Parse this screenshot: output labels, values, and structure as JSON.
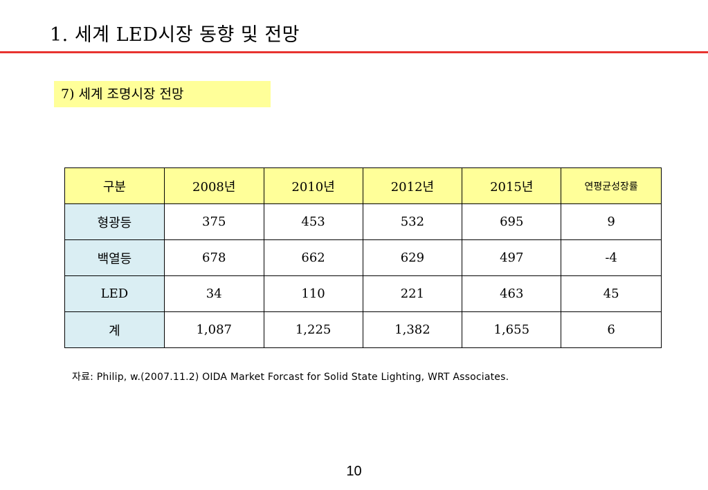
{
  "slide": {
    "title": "1. 세계 LED시장 동향 및 전망",
    "section_label": "7)  세계 조명시장 전망",
    "source_note": "자료: Philip, w.(2007.11.2) OIDA Market Forcast for Solid State Lighting, WRT Associates.",
    "page_number": "10",
    "colors": {
      "title_rule": "#e8332f",
      "highlight_yellow": "#ffff99",
      "row_header_blue": "#daeef3"
    }
  },
  "chart_data": {
    "type": "table",
    "headers": [
      "구분",
      "2008년",
      "2010년",
      "2012년",
      "2015년",
      "연평균성장률"
    ],
    "rows": [
      [
        "형광등",
        "375",
        "453",
        "532",
        "695",
        "9"
      ],
      [
        "백열등",
        "678",
        "662",
        "629",
        "497",
        "-4"
      ],
      [
        "LED",
        "34",
        "110",
        "221",
        "463",
        "45"
      ],
      [
        "계",
        "1,087",
        "1,225",
        "1,382",
        "1,655",
        "6"
      ]
    ]
  }
}
